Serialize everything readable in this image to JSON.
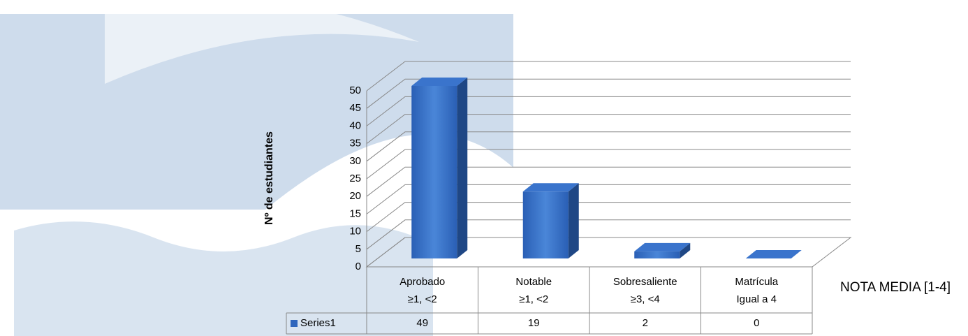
{
  "chart_data": {
    "type": "bar3d",
    "y_label": "Nº de estudiantes",
    "x_label": "NOTA MEDIA [1-4]",
    "categories": [
      [
        "Aprobado",
        "≥1, <2"
      ],
      [
        "Notable",
        "≥1, <2"
      ],
      [
        "Sobresaliente",
        "≥3, <4"
      ],
      [
        "Matrícula",
        "Igual a 4"
      ]
    ],
    "series": [
      {
        "name": "Series1",
        "color": "#2f66bd",
        "values": [
          49,
          19,
          2,
          0
        ]
      }
    ],
    "ylim": [
      0,
      50
    ],
    "yticks": [
      0,
      5,
      10,
      15,
      20,
      25,
      30,
      35,
      40,
      45,
      50
    ],
    "grid": true
  }
}
